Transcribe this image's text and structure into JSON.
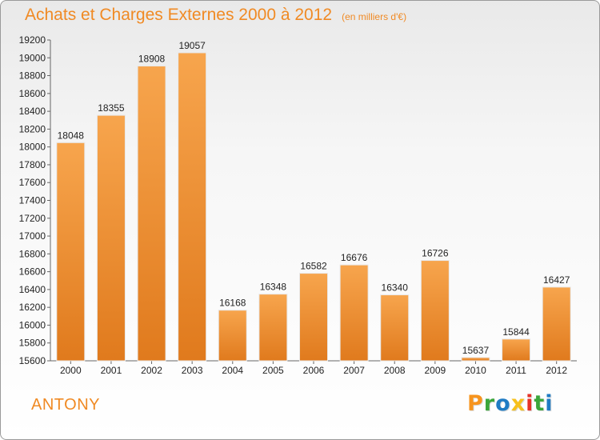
{
  "header": {
    "title": "Achats et Charges Externes 2000 à 2012",
    "subtitle": "(en milliers d'€)"
  },
  "footer": {
    "city": "ANTONY",
    "logo": {
      "letters": [
        "P",
        "r",
        "o",
        "x",
        "i",
        "t",
        "i"
      ],
      "colors": [
        "#f7941d",
        "#3aa63a",
        "#1f7bc4",
        "#f7c11d",
        "#e63228",
        "#3aa63a",
        "#1f7bc4"
      ]
    }
  },
  "chart_data": {
    "type": "bar",
    "title": "Achats et Charges Externes 2000 à 2012",
    "subtitle": "(en milliers d'€)",
    "xlabel": "",
    "ylabel": "",
    "categories": [
      "2000",
      "2001",
      "2002",
      "2003",
      "2004",
      "2005",
      "2006",
      "2007",
      "2008",
      "2009",
      "2010",
      "2011",
      "2012"
    ],
    "values": [
      18048,
      18355,
      18908,
      19057,
      16168,
      16348,
      16582,
      16676,
      16340,
      16726,
      15637,
      15844,
      16427
    ],
    "ylim": [
      15600,
      19200
    ],
    "ytick_step": 200,
    "grid": false,
    "legend": "none",
    "colors": {
      "bar_light": "#f7a54d",
      "bar_dark": "#e07a1d",
      "text": "#222222",
      "accent": "#f08a24"
    }
  }
}
